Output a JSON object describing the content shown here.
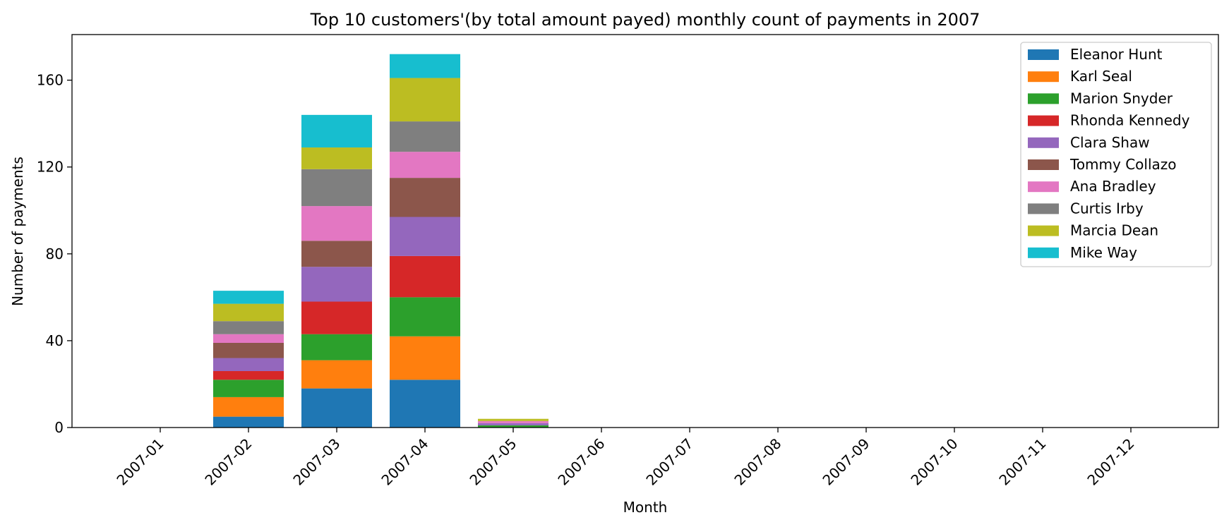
{
  "chart_data": {
    "type": "bar",
    "stacked": true,
    "title": "Top 10 customers'(by total amount payed) monthly count of payments in 2007",
    "xlabel": "Month",
    "ylabel": "Number of payments",
    "ylim": [
      0,
      181
    ],
    "yticks": [
      0,
      40,
      80,
      120,
      160
    ],
    "grid": false,
    "legend": "top-right",
    "categories": [
      "2007-01",
      "2007-02",
      "2007-03",
      "2007-04",
      "2007-05",
      "2007-06",
      "2007-07",
      "2007-08",
      "2007-09",
      "2007-10",
      "2007-11",
      "2007-12"
    ],
    "series": [
      {
        "name": "Eleanor Hunt",
        "color": "#1f77b4",
        "values": [
          0,
          5,
          18,
          22,
          0,
          0,
          0,
          0,
          0,
          0,
          0,
          0
        ]
      },
      {
        "name": "Karl Seal",
        "color": "#ff7f0e",
        "values": [
          0,
          9,
          13,
          20,
          0,
          0,
          0,
          0,
          0,
          0,
          0,
          0
        ]
      },
      {
        "name": "Marion Snyder",
        "color": "#2ca02c",
        "values": [
          0,
          8,
          12,
          18,
          1,
          0,
          0,
          0,
          0,
          0,
          0,
          0
        ]
      },
      {
        "name": "Rhonda Kennedy",
        "color": "#d62728",
        "values": [
          0,
          4,
          15,
          19,
          0,
          0,
          0,
          0,
          0,
          0,
          0,
          0
        ]
      },
      {
        "name": "Clara Shaw",
        "color": "#9467bd",
        "values": [
          0,
          6,
          16,
          18,
          1,
          0,
          0,
          0,
          0,
          0,
          0,
          0
        ]
      },
      {
        "name": "Tommy Collazo",
        "color": "#8c564b",
        "values": [
          0,
          7,
          12,
          18,
          0,
          0,
          0,
          0,
          0,
          0,
          0,
          0
        ]
      },
      {
        "name": "Ana Bradley",
        "color": "#e377c2",
        "values": [
          0,
          4,
          16,
          12,
          1,
          0,
          0,
          0,
          0,
          0,
          0,
          0
        ]
      },
      {
        "name": "Curtis Irby",
        "color": "#7f7f7f",
        "values": [
          0,
          6,
          17,
          14,
          0,
          0,
          0,
          0,
          0,
          0,
          0,
          0
        ]
      },
      {
        "name": "Marcia Dean",
        "color": "#bcbd22",
        "values": [
          0,
          8,
          10,
          20,
          1,
          0,
          0,
          0,
          0,
          0,
          0,
          0
        ]
      },
      {
        "name": "Mike Way",
        "color": "#17becf",
        "values": [
          0,
          6,
          15,
          11,
          0,
          0,
          0,
          0,
          0,
          0,
          0,
          0
        ]
      }
    ]
  }
}
